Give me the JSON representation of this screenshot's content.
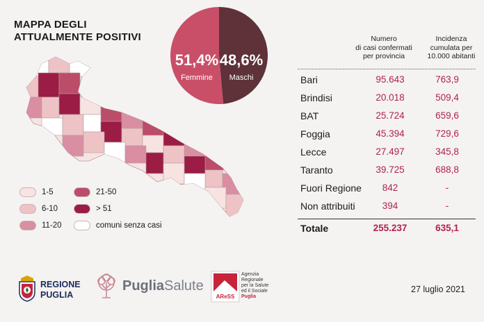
{
  "title": {
    "line1": "MAPPA DEGLI",
    "line2": "ATTUALMENTE POSITIVI"
  },
  "pie": {
    "female_pct": "51,4%",
    "female_label": "Femmine",
    "female_value": 51.4,
    "male_pct": "48,6%",
    "male_label": "Maschi",
    "male_value": 48.6,
    "female_color": "#c94f68",
    "male_color": "#5e3238"
  },
  "legend": {
    "items": [
      {
        "label": "1-5",
        "color": "#f7e3e1"
      },
      {
        "label": "6-10",
        "color": "#eec3c6"
      },
      {
        "label": "11-20",
        "color": "#d98ea2"
      },
      {
        "label": "21-50",
        "color": "#bb4c6a"
      },
      {
        "label": "> 51",
        "color": "#9b1c45"
      },
      {
        "label": "comuni senza casi",
        "color": "#ffffff"
      }
    ]
  },
  "table": {
    "header_cases": [
      "Numero",
      "di casi confermati",
      "per provincia"
    ],
    "header_incidence": [
      "Incidenza",
      "cumulata per",
      "10.000 abitanti"
    ],
    "rows": [
      {
        "name": "Bari",
        "cases": "95.643",
        "incidence": "763,9"
      },
      {
        "name": "Brindisi",
        "cases": "20.018",
        "incidence": "509,4"
      },
      {
        "name": "BAT",
        "cases": "25.724",
        "incidence": "659,6"
      },
      {
        "name": "Foggia",
        "cases": "45.394",
        "incidence": "729,6"
      },
      {
        "name": "Lecce",
        "cases": "27.497",
        "incidence": "345,8"
      },
      {
        "name": "Taranto",
        "cases": "39.725",
        "incidence": "688,8"
      },
      {
        "name": "Fuori Regione",
        "cases": "842",
        "incidence": "-"
      },
      {
        "name": "Non attribuiti",
        "cases": "394",
        "incidence": "-"
      }
    ],
    "total": {
      "name": "Totale",
      "cases": "255.237",
      "incidence": "635,1"
    }
  },
  "logos": {
    "regione": [
      "REGIONE",
      "PUGLIA"
    ],
    "puglia_salute": {
      "bold": "Puglia",
      "light": "Salute"
    },
    "aress_mark": "AReSS",
    "aress_text": [
      "Agenzia",
      "Regionale",
      "per la Salute",
      "ed il Sociale"
    ],
    "aress_region": "Puglia"
  },
  "date": "27 luglio 2021"
}
